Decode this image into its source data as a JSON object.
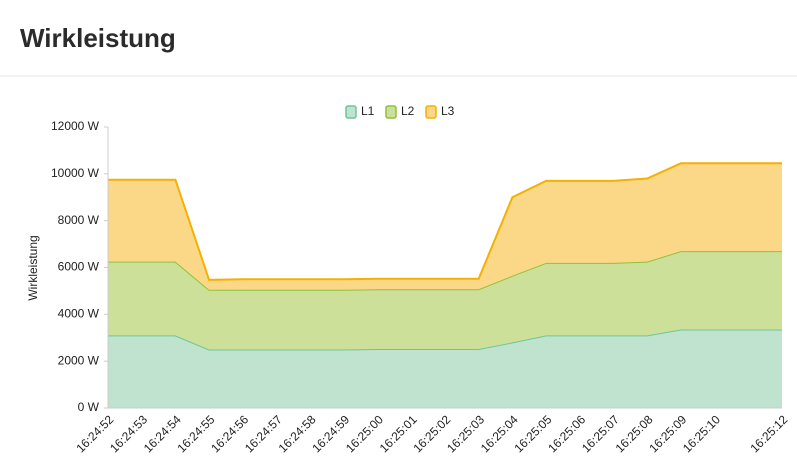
{
  "chart_data": {
    "type": "stacked-area",
    "title": "Wirkleistung",
    "y_label": "Wirkleistung",
    "categories": [
      "16:24:52",
      "16:24:53",
      "16:24:54",
      "16:24:55",
      "16:24:56",
      "16:24:57",
      "16:24:58",
      "16:24:59",
      "16:25:00",
      "16:25:01",
      "16:25:02",
      "16:25:03",
      "16:25:04",
      "16:25:05",
      "16:25:06",
      "16:25:07",
      "16:25:08",
      "16:25:09",
      "16:25:10",
      null,
      "16:25:12"
    ],
    "series": [
      {
        "name": "L1",
        "color": "#6cc79a",
        "fill": "#bfe3cf",
        "values": [
          3100,
          3100,
          3100,
          2500,
          2500,
          2500,
          2500,
          2500,
          2520,
          2520,
          2520,
          2520,
          2800,
          3100,
          3100,
          3100,
          3100,
          3350,
          3350,
          3350,
          3350
        ]
      },
      {
        "name": "L2",
        "color": "#8fc13c",
        "fill": "#cde09a",
        "values": [
          3150,
          3150,
          3150,
          2550,
          2550,
          2550,
          2550,
          2550,
          2550,
          2550,
          2550,
          2550,
          2850,
          3100,
          3100,
          3100,
          3150,
          3350,
          3350,
          3350,
          3350
        ]
      },
      {
        "name": "L3",
        "color": "#f5b100",
        "fill": "#fbd887",
        "values": [
          3500,
          3500,
          3500,
          420,
          450,
          450,
          450,
          450,
          450,
          450,
          450,
          450,
          3350,
          3500,
          3500,
          3500,
          3550,
          3750,
          3750,
          3750,
          3750
        ]
      }
    ],
    "ylim": [
      0,
      12000
    ],
    "yticks": [
      {
        "value": 0,
        "label": "0 W"
      },
      {
        "value": 2000,
        "label": "2000 W"
      },
      {
        "value": 4000,
        "label": "4000 W"
      },
      {
        "value": 6000,
        "label": "6000 W"
      },
      {
        "value": 8000,
        "label": "8000 W"
      },
      {
        "value": 10000,
        "label": "10000 W"
      },
      {
        "value": 12000,
        "label": "12000 W"
      }
    ],
    "legend": "top"
  }
}
